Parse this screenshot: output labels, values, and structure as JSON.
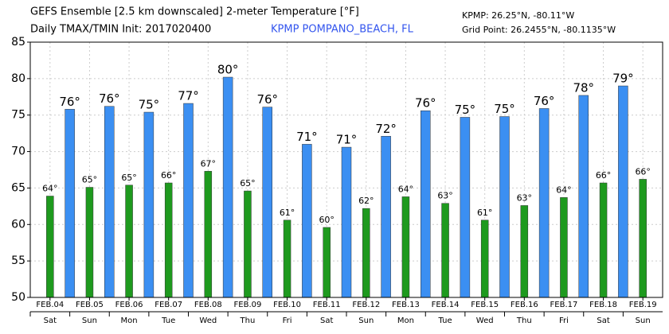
{
  "chart_data": {
    "type": "bar",
    "title": "GEFS Ensemble [2.5 km downscaled] 2-meter Temperature [°F]",
    "subtitle": "Daily TMAX/TMIN Init: 2017020400",
    "station": "KPMP POMPANO_BEACH, FL",
    "annotations": [
      "KPMP: 26.25°N, -80.11°W",
      "Grid Point: 26.2455°N, -80.1135°W"
    ],
    "categories": [
      "FEB.04",
      "FEB.05",
      "FEB.06",
      "FEB.07",
      "FEB.08",
      "FEB.09",
      "FEB.10",
      "FEB.11",
      "FEB.12",
      "FEB.13",
      "FEB.14",
      "FEB.15",
      "FEB.16",
      "FEB.17",
      "FEB.18",
      "FEB.19"
    ],
    "days": [
      "Sat",
      "Sun",
      "Mon",
      "Tue",
      "Wed",
      "Thu",
      "Fri",
      "Sat",
      "Sun",
      "Mon",
      "Tue",
      "Wed",
      "Thu",
      "Fri",
      "Sat",
      "Sun"
    ],
    "series": [
      {
        "name": "TMAX",
        "color": "#3b8ff2",
        "values": [
          75.8,
          76.2,
          75.4,
          76.6,
          80.2,
          76.1,
          71.0,
          70.6,
          72.1,
          75.6,
          74.7,
          74.8,
          75.9,
          77.7,
          79.0,
          null
        ],
        "value_labels": [
          "76°",
          "76°",
          "75°",
          "77°",
          "80°",
          "76°",
          "71°",
          "71°",
          "72°",
          "76°",
          "75°",
          "75°",
          "76°",
          "78°",
          "79°",
          null
        ]
      },
      {
        "name": "TMIN",
        "color": "#1e9a1e",
        "values": [
          63.9,
          65.1,
          65.4,
          65.7,
          67.3,
          64.6,
          60.6,
          59.6,
          62.2,
          63.8,
          62.9,
          60.6,
          62.6,
          63.7,
          65.7,
          66.2
        ],
        "value_labels": [
          "64°",
          "65°",
          "65°",
          "66°",
          "67°",
          "65°",
          "61°",
          "60°",
          "62°",
          "64°",
          "63°",
          "61°",
          "63°",
          "64°",
          "66°",
          "66°"
        ]
      }
    ],
    "ylim": [
      50,
      85
    ],
    "yticks": [
      50,
      55,
      60,
      65,
      70,
      75,
      80,
      85
    ],
    "grid": true
  }
}
